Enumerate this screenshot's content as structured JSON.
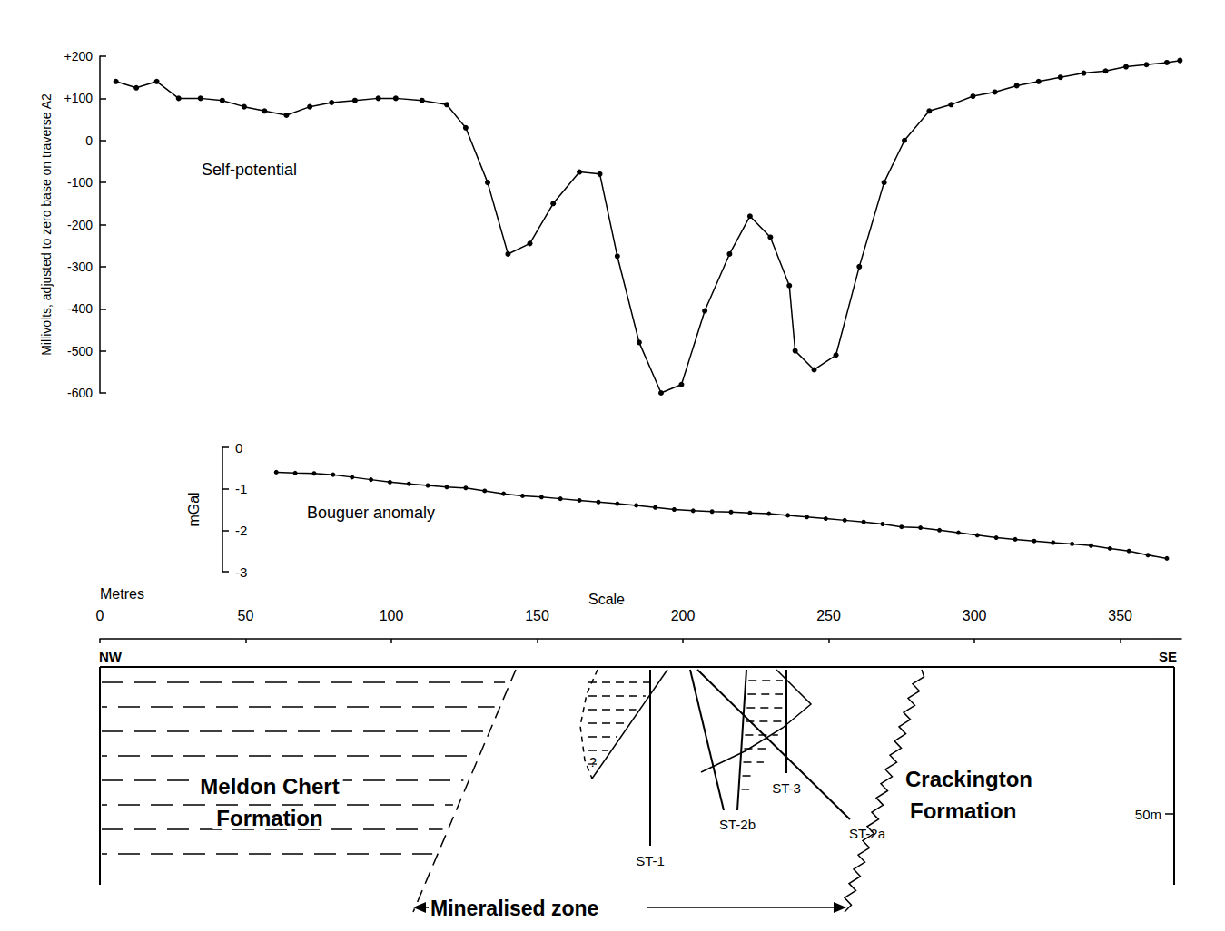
{
  "chart_data": [
    {
      "type": "line",
      "title": "Self-potential",
      "ylabel": "Millivolts, adjusted to zero base on traverse A2",
      "x": [
        5.5,
        12.5,
        19.5,
        27,
        34.5,
        42,
        49.5,
        56.5,
        64,
        72,
        79.5,
        87.5,
        95.5,
        101.5,
        110.5,
        119,
        125.5,
        133,
        140,
        147.5,
        155.5,
        164.5,
        171.5,
        177.5,
        185,
        192.5,
        199.5,
        207.5,
        216,
        223,
        230,
        236.5,
        238.5,
        245,
        252.5,
        260.5,
        269,
        276,
        284.5,
        292,
        299.5,
        307,
        314.5,
        322,
        329.5,
        337.5,
        345,
        352,
        359,
        366,
        370.5
      ],
      "values": [
        140,
        125,
        140,
        100,
        100,
        95,
        80,
        70,
        60,
        80,
        90,
        95,
        100,
        100,
        95,
        85,
        30,
        -100,
        -270,
        -245,
        -150,
        -75,
        -80,
        -275,
        -480,
        -600,
        -580,
        -405,
        -270,
        -180,
        -230,
        -345,
        -500,
        -545,
        -510,
        -300,
        -100,
        0,
        70,
        85,
        105,
        115,
        130,
        140,
        150,
        160,
        165,
        175,
        180,
        185,
        190
      ],
      "xlim": [
        0,
        371
      ],
      "ylim": [
        -600,
        200
      ],
      "yticks": [
        {
          "value": 200,
          "label": "+200"
        },
        {
          "value": 100,
          "label": "+100"
        },
        0,
        -100,
        -200,
        -300,
        -400,
        -500,
        -600
      ],
      "color": "#000000",
      "marker": "circle",
      "grid": false,
      "tick_labels": "y"
    },
    {
      "type": "line",
      "title": "Bouguer anomaly",
      "ylabel": "mGal",
      "x": [
        60.5,
        67,
        73.5,
        80,
        86.5,
        93,
        99.5,
        106,
        112.5,
        119,
        125.5,
        132,
        138.5,
        145,
        151.5,
        158,
        164.5,
        171,
        177.5,
        184,
        190.5,
        197,
        203.5,
        210,
        216.5,
        223,
        229.5,
        236,
        242.5,
        249,
        255.5,
        262,
        268.5,
        275,
        281.5,
        288,
        294.5,
        301,
        307.5,
        314,
        320.5,
        327,
        333.5,
        340,
        346.5,
        353,
        359.5,
        366
      ],
      "values": [
        -0.6,
        -0.62,
        -0.63,
        -0.66,
        -0.72,
        -0.78,
        -0.84,
        -0.88,
        -0.92,
        -0.96,
        -0.98,
        -1.05,
        -1.12,
        -1.17,
        -1.2,
        -1.24,
        -1.28,
        -1.32,
        -1.36,
        -1.4,
        -1.45,
        -1.5,
        -1.53,
        -1.55,
        -1.56,
        -1.58,
        -1.6,
        -1.64,
        -1.68,
        -1.72,
        -1.76,
        -1.8,
        -1.85,
        -1.92,
        -1.94,
        -2,
        -2.06,
        -2.12,
        -2.18,
        -2.22,
        -2.26,
        -2.3,
        -2.33,
        -2.37,
        -2.44,
        -2.5,
        -2.6,
        -2.68
      ],
      "xlim": [
        0,
        371
      ],
      "ylim": [
        -3,
        0
      ],
      "yticks": [
        0,
        -1,
        -2,
        -3
      ],
      "color": "#000000",
      "marker": "circle",
      "grid": false,
      "tick_labels": "y"
    }
  ],
  "scale": {
    "title": "Scale",
    "xlabel": "Metres",
    "xlim": [
      0,
      371
    ],
    "xticks": [
      0,
      50,
      100,
      150,
      200,
      250,
      300,
      350
    ]
  },
  "cross_section": {
    "left_end": "NW",
    "right_end": "SE",
    "formations": [
      [
        "Meldon Chert",
        "Formation"
      ],
      [
        "Crackington",
        "Formation"
      ]
    ],
    "boreholes": [
      "ST-1",
      "ST-2b",
      "ST-3",
      "ST-2a"
    ],
    "zone_label": "Mineralised zone",
    "depth_label": "50m",
    "query": "?"
  }
}
